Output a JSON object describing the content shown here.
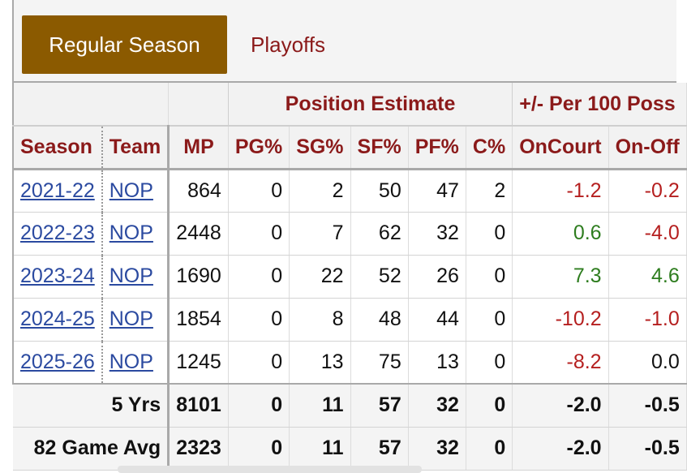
{
  "tabs": {
    "active": "Regular Season",
    "other": "Playoffs"
  },
  "header": {
    "group_position": "Position Estimate",
    "group_plusminus": "+/- Per 100 Poss",
    "columns": [
      "Season",
      "Team",
      "MP",
      "PG%",
      "SG%",
      "SF%",
      "PF%",
      "C%",
      "OnCourt",
      "On-Off"
    ]
  },
  "rows": [
    {
      "season": "2021-22",
      "team": "NOP",
      "mp": "864",
      "pg": "0",
      "sg": "2",
      "sf": "50",
      "pf": "47",
      "c": "2",
      "oncourt": "-1.2",
      "onoff": "-0.2"
    },
    {
      "season": "2022-23",
      "team": "NOP",
      "mp": "2448",
      "pg": "0",
      "sg": "7",
      "sf": "62",
      "pf": "32",
      "c": "0",
      "oncourt": "0.6",
      "onoff": "-4.0"
    },
    {
      "season": "2023-24",
      "team": "NOP",
      "mp": "1690",
      "pg": "0",
      "sg": "22",
      "sf": "52",
      "pf": "26",
      "c": "0",
      "oncourt": "7.3",
      "onoff": "4.6"
    },
    {
      "season": "2024-25",
      "team": "NOP",
      "mp": "1854",
      "pg": "0",
      "sg": "8",
      "sf": "48",
      "pf": "44",
      "c": "0",
      "oncourt": "-10.2",
      "onoff": "-1.0"
    },
    {
      "season": "2025-26",
      "team": "NOP",
      "mp": "1245",
      "pg": "0",
      "sg": "13",
      "sf": "75",
      "pf": "13",
      "c": "0",
      "oncourt": "-8.2",
      "onoff": "0.0"
    }
  ],
  "footer": [
    {
      "label": "5 Yrs",
      "mp": "8101",
      "pg": "0",
      "sg": "11",
      "sf": "57",
      "pf": "32",
      "c": "0",
      "oncourt": "-2.0",
      "onoff": "-0.5"
    },
    {
      "label": "82 Game Avg",
      "mp": "2323",
      "pg": "0",
      "sg": "11",
      "sf": "57",
      "pf": "32",
      "c": "0",
      "oncourt": "-2.0",
      "onoff": "-0.5"
    }
  ],
  "colors": {
    "active_tab": "#8b5a00",
    "header_text": "#8b1a1a",
    "link": "#2b4aa0",
    "positive": "#2e7d1f",
    "negative": "#b51f1f"
  }
}
